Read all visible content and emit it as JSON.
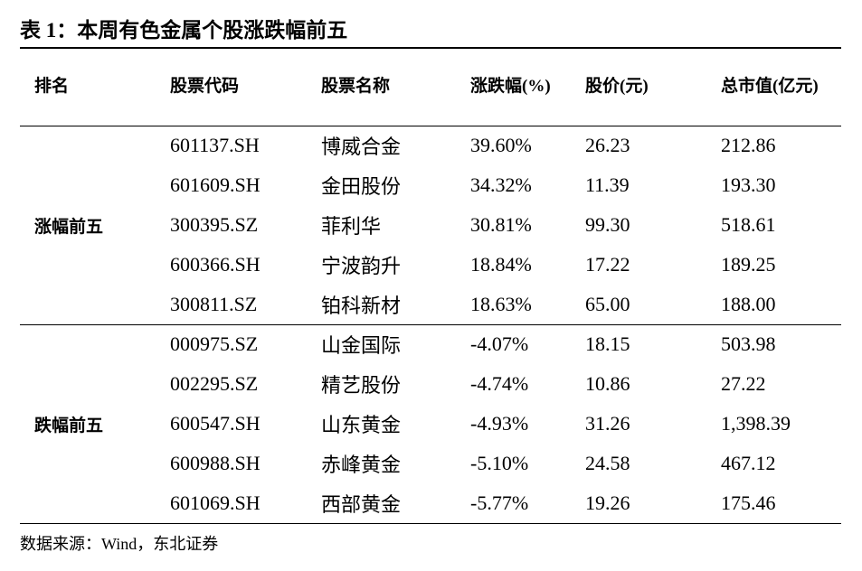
{
  "title": "表 1：本周有色金属个股涨跌幅前五",
  "table": {
    "header": [
      "排名",
      "股票代码",
      "股票名称",
      "涨跌幅(%)",
      "股价(元)",
      "总市值(亿元)"
    ],
    "groups": [
      {
        "label": "涨幅前五",
        "rows": [
          [
            "601137.SH",
            "博威合金",
            "39.60%",
            "26.23",
            "212.86"
          ],
          [
            "601609.SH",
            "金田股份",
            "34.32%",
            "11.39",
            "193.30"
          ],
          [
            "300395.SZ",
            "菲利华",
            "30.81%",
            "99.30",
            "518.61"
          ],
          [
            "600366.SH",
            "宁波韵升",
            "18.84%",
            "17.22",
            "189.25"
          ],
          [
            "300811.SZ",
            "铂科新材",
            "18.63%",
            "65.00",
            "188.00"
          ]
        ]
      },
      {
        "label": "跌幅前五",
        "rows": [
          [
            "000975.SZ",
            "山金国际",
            "-4.07%",
            "18.15",
            "503.98"
          ],
          [
            "002295.SZ",
            "精艺股份",
            "-4.74%",
            "10.86",
            "27.22"
          ],
          [
            "600547.SH",
            "山东黄金",
            "-4.93%",
            "31.26",
            "1,398.39"
          ],
          [
            "600988.SH",
            "赤峰黄金",
            "-5.10%",
            "24.58",
            "467.12"
          ],
          [
            "601069.SH",
            "西部黄金",
            "-5.77%",
            "19.26",
            "175.46"
          ]
        ]
      }
    ]
  },
  "source": "数据来源：Wind，东北证券"
}
